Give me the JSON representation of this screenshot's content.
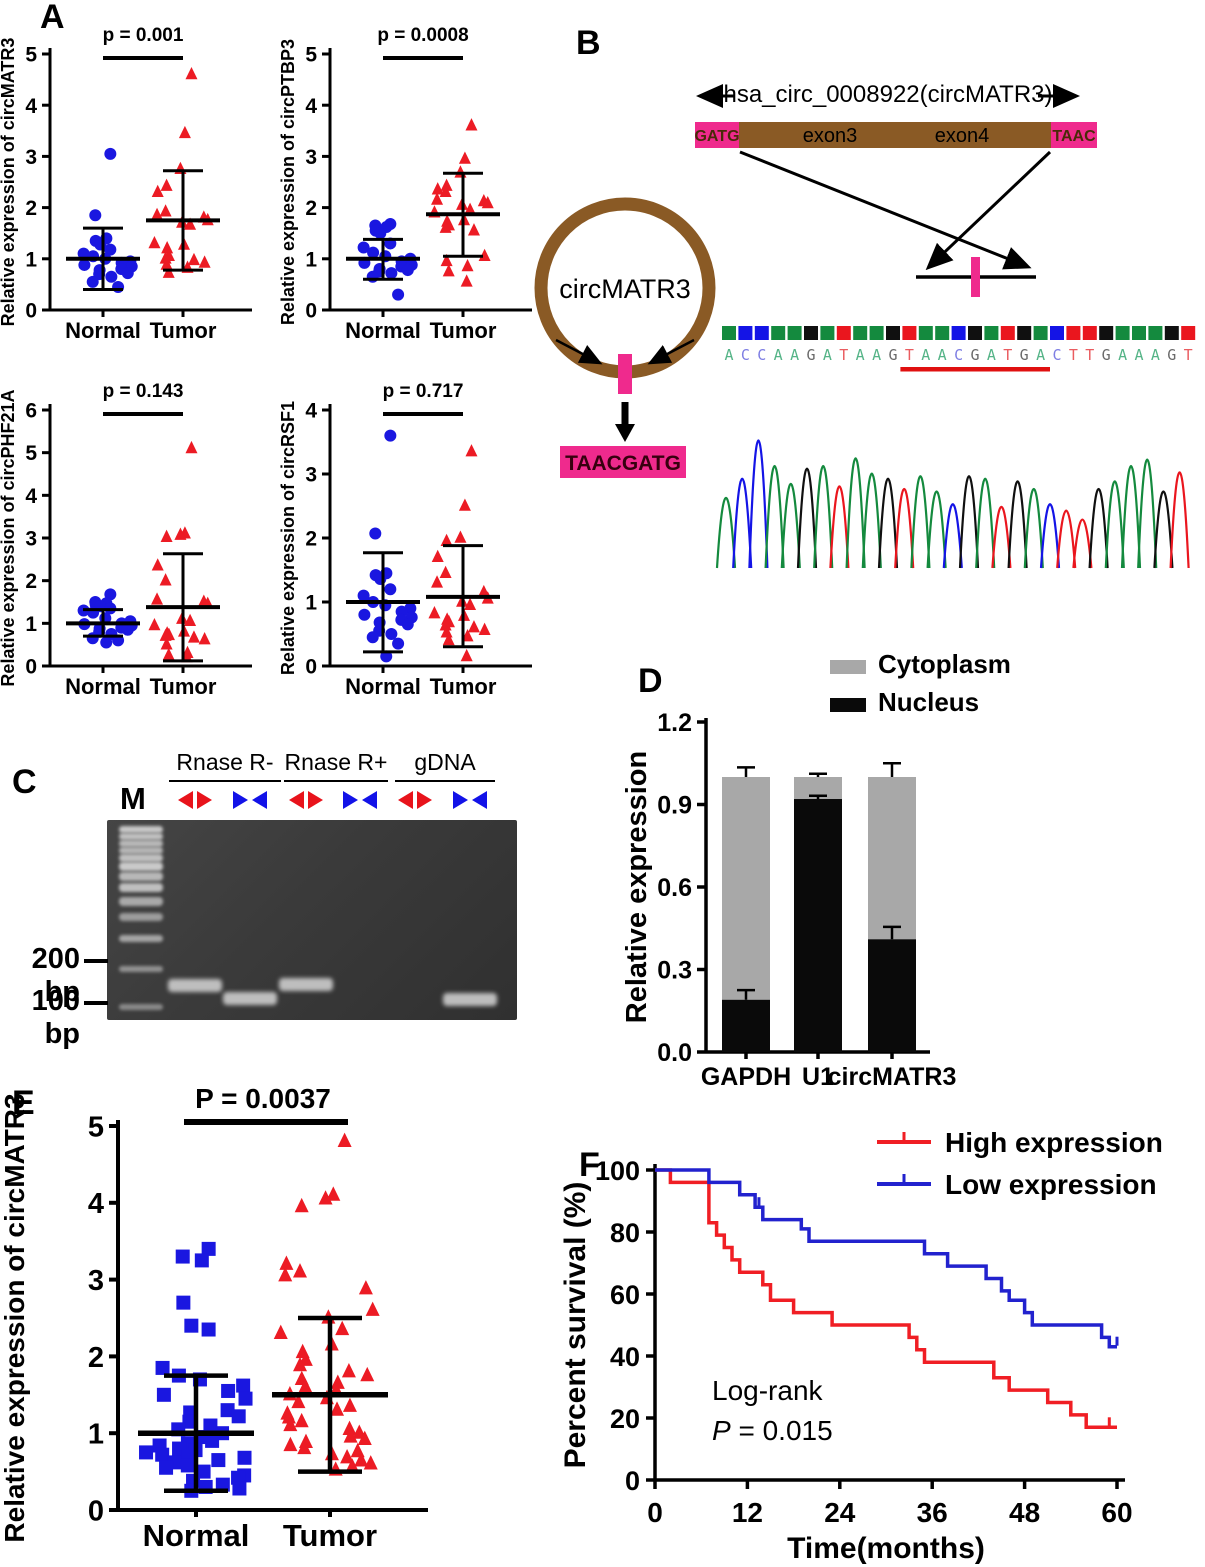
{
  "panel_labels": {
    "A": "A",
    "B": "B",
    "C": "C",
    "D": "D",
    "E": "E",
    "F": "F"
  },
  "colors": {
    "marker_blue": "#1A17E0",
    "marker_red": "#EC1B24",
    "km_red": "#F01E24",
    "km_blue": "#2222CE",
    "magenta": "#EF2A8D",
    "brown": "#8A5A25",
    "gray": "#A8A8A8",
    "black": "#0A0A0A",
    "underline_red": "#E01010",
    "arrow_red": "#E8131B",
    "arrow_blue": "#1212E8"
  },
  "panelB": {
    "title": "hsa_circ_0008922(circMATR3)",
    "gatg": "GATG",
    "taac": "TAAC",
    "exon3": "exon3",
    "exon4": "exon4",
    "circle_label": "circMATR3",
    "junction_seq": "TAACGATG",
    "sequence": "ACCAAGATAAGTAACGATGACTTGAAAGT",
    "underline": {
      "start": 11,
      "length": 9
    },
    "base_colors": {
      "A": "#148A3E",
      "C": "#1414E6",
      "G": "#101010",
      "T": "#EA161E"
    },
    "letter_colors": {
      "A": "#55B487",
      "C": "#7E7EE3",
      "G": "#6A6A6A",
      "T": "#EA5C60"
    },
    "chromatogram_heights": [
      0.55,
      0.7,
      1.0,
      0.8,
      0.66,
      0.78,
      0.8,
      0.64,
      0.86,
      0.74,
      0.7,
      0.62,
      0.72,
      0.6,
      0.5,
      0.72,
      0.7,
      0.48,
      0.68,
      0.62,
      0.5,
      0.45,
      0.38,
      0.62,
      0.68,
      0.8,
      0.85,
      0.6,
      0.75
    ]
  },
  "panelC": {
    "marker_lane_label": "M",
    "group_labels": [
      "Rnase R-",
      "Rnase R+",
      "gDNA"
    ],
    "size_labels": [
      "200 bp",
      "100 bp"
    ],
    "lanes": [
      {
        "group": "Rnase R-",
        "primers": "divergent",
        "color": "red",
        "band_bp": 150
      },
      {
        "group": "Rnase R-",
        "primers": "convergent",
        "color": "blue",
        "band_bp": 115
      },
      {
        "group": "Rnase R+",
        "primers": "divergent",
        "color": "red",
        "band_bp": 152
      },
      {
        "group": "Rnase R+",
        "primers": "convergent",
        "color": "blue",
        "band_bp": null
      },
      {
        "group": "gDNA",
        "primers": "divergent",
        "color": "red",
        "band_bp": null
      },
      {
        "group": "gDNA",
        "primers": "convergent",
        "color": "blue",
        "band_bp": 112
      }
    ]
  },
  "chart_data": [
    {
      "id": "A1",
      "type": "scatter",
      "ylabel": "Relative expression of circMATR3",
      "p_label": "p = 0.001",
      "ylim": [
        0,
        5
      ],
      "yticks": [
        0,
        1,
        2,
        3,
        4,
        5
      ],
      "categories": [
        "Normal",
        "Tumor"
      ],
      "series": [
        {
          "name": "Normal",
          "marker": "circle",
          "color": "#1A17E0",
          "mean": 1.0,
          "sd_range": [
            0.4,
            1.6
          ],
          "values": [
            3.05,
            1.85,
            1.4,
            1.35,
            1.28,
            1.18,
            1.1,
            1.05,
            1.0,
            0.95,
            0.92,
            0.88,
            0.85,
            0.8,
            0.78,
            0.72,
            0.7,
            0.65,
            0.55,
            0.45
          ]
        },
        {
          "name": "Tumor",
          "marker": "triangle",
          "color": "#EC1B24",
          "mean": 1.75,
          "sd_range": [
            0.78,
            2.72
          ],
          "values": [
            4.6,
            3.45,
            2.75,
            2.42,
            2.3,
            1.92,
            1.85,
            1.8,
            1.75,
            1.7,
            1.66,
            1.3,
            1.27,
            1.2,
            1.05,
            1.0,
            0.97,
            0.92,
            0.88,
            0.82,
            0.72
          ]
        }
      ]
    },
    {
      "id": "A2",
      "type": "scatter",
      "ylabel": "Relative expression of circPTBP3",
      "p_label": "p = 0.0008",
      "ylim": [
        0,
        5
      ],
      "yticks": [
        0,
        1,
        2,
        3,
        4,
        5
      ],
      "categories": [
        "Normal",
        "Tumor"
      ],
      "series": [
        {
          "name": "Normal",
          "marker": "circle",
          "color": "#1A17E0",
          "mean": 1.0,
          "sd_range": [
            0.6,
            1.38
          ],
          "values": [
            1.68,
            1.65,
            1.62,
            1.55,
            1.5,
            1.3,
            1.22,
            1.12,
            1.05,
            1.0,
            0.95,
            0.92,
            0.88,
            0.85,
            0.8,
            0.78,
            0.75,
            0.72,
            0.65,
            0.3
          ]
        },
        {
          "name": "Tumor",
          "marker": "triangle",
          "color": "#EC1B24",
          "mean": 1.87,
          "sd_range": [
            1.05,
            2.67
          ],
          "values": [
            3.6,
            2.95,
            2.68,
            2.42,
            2.35,
            2.3,
            2.15,
            2.12,
            2.08,
            2.05,
            1.95,
            1.9,
            1.75,
            1.72,
            1.65,
            1.6,
            1.55,
            1.05,
            0.95,
            0.85,
            0.75,
            0.55
          ]
        }
      ]
    },
    {
      "id": "A3",
      "type": "scatter",
      "ylabel": "Relative expression of circPHF21A",
      "p_label": "p = 0.143",
      "ylim": [
        0,
        6
      ],
      "yticks": [
        0,
        1,
        2,
        3,
        4,
        5,
        6
      ],
      "categories": [
        "Normal",
        "Tumor"
      ],
      "series": [
        {
          "name": "Normal",
          "marker": "circle",
          "color": "#1A17E0",
          "mean": 1.0,
          "sd_range": [
            0.7,
            1.32
          ],
          "values": [
            1.68,
            1.5,
            1.47,
            1.44,
            1.4,
            1.35,
            1.3,
            1.25,
            1.12,
            1.05,
            1.0,
            0.98,
            0.95,
            0.9,
            0.88,
            0.85,
            0.8,
            0.75,
            0.65,
            0.6,
            0.55
          ]
        },
        {
          "name": "Tumor",
          "marker": "triangle",
          "color": "#EC1B24",
          "mean": 1.38,
          "sd_range": [
            0.12,
            2.63
          ],
          "values": [
            5.1,
            3.1,
            3.07,
            3.02,
            2.35,
            2.0,
            1.55,
            1.5,
            1.45,
            1.1,
            1.05,
            0.95,
            0.8,
            0.76,
            0.72,
            0.7,
            0.66,
            0.62,
            0.5,
            0.3,
            0.25,
            0.2
          ]
        }
      ]
    },
    {
      "id": "A4",
      "type": "scatter",
      "ylabel": "Relative expression of circRSF1",
      "p_label": "p = 0.717",
      "ylim": [
        0,
        4
      ],
      "yticks": [
        0,
        1,
        2,
        3,
        4
      ],
      "categories": [
        "Normal",
        "Tumor"
      ],
      "series": [
        {
          "name": "Normal",
          "marker": "circle",
          "color": "#1A17E0",
          "mean": 1.0,
          "sd_range": [
            0.22,
            1.77
          ],
          "values": [
            3.6,
            2.07,
            1.45,
            1.42,
            1.36,
            1.2,
            1.1,
            1.0,
            0.95,
            0.9,
            0.85,
            0.8,
            0.76,
            0.72,
            0.68,
            0.65,
            0.55,
            0.5,
            0.45,
            0.35,
            0.15
          ]
        },
        {
          "name": "Tumor",
          "marker": "triangle",
          "color": "#EC1B24",
          "mean": 1.08,
          "sd_range": [
            0.3,
            1.88
          ],
          "values": [
            3.35,
            2.5,
            2.0,
            1.95,
            1.7,
            1.45,
            1.3,
            1.15,
            1.05,
            1.0,
            0.95,
            0.82,
            0.78,
            0.72,
            0.68,
            0.63,
            0.6,
            0.56,
            0.52,
            0.46,
            0.4,
            0.15
          ]
        }
      ]
    },
    {
      "id": "D",
      "type": "stacked-bar",
      "ylabel": "Relative expression",
      "ylim": [
        0,
        1.2
      ],
      "yticks": [
        "0.0",
        "0.3",
        "0.6",
        "0.9",
        "1.2"
      ],
      "categories": [
        "GAPDH",
        "U1",
        "circMATR3"
      ],
      "legend": [
        {
          "label": "Cytoplasm",
          "color": "#A8A8A8"
        },
        {
          "label": "Nucleus",
          "color": "#0A0A0A"
        }
      ],
      "series": [
        {
          "name": "Nucleus",
          "color": "#0A0A0A",
          "values": [
            0.19,
            0.92,
            0.41
          ],
          "errors": [
            0.035,
            0.012,
            0.045
          ]
        },
        {
          "name": "Cytoplasm",
          "color": "#A8A8A8",
          "values": [
            0.81,
            0.08,
            0.59
          ],
          "errors": [
            0.035,
            0.012,
            0.05
          ]
        }
      ]
    },
    {
      "id": "E",
      "type": "scatter",
      "ylabel": "Relative expression of circMATR3",
      "p_label": "P = 0.0037",
      "ylim": [
        0,
        5
      ],
      "yticks": [
        0,
        1,
        2,
        3,
        4,
        5
      ],
      "categories": [
        "Normal",
        "Tumor"
      ],
      "series": [
        {
          "name": "Normal",
          "marker": "square",
          "color": "#1A17E0",
          "mean": 1.0,
          "sd_range": [
            0.25,
            1.75
          ],
          "values": [
            3.4,
            3.3,
            3.25,
            2.7,
            2.4,
            2.35,
            1.85,
            1.75,
            1.7,
            1.62,
            1.55,
            1.5,
            1.45,
            1.3,
            1.27,
            1.22,
            1.15,
            1.1,
            1.05,
            1.0,
            0.95,
            0.9,
            0.87,
            0.84,
            0.8,
            0.78,
            0.75,
            0.72,
            0.7,
            0.68,
            0.65,
            0.62,
            0.58,
            0.55,
            0.5,
            0.45,
            0.42,
            0.38,
            0.33,
            0.3,
            0.28,
            0.25
          ]
        },
        {
          "name": "Tumor",
          "marker": "triangle",
          "color": "#EC1B24",
          "mean": 1.5,
          "sd_range": [
            0.5,
            2.5
          ],
          "values": [
            4.8,
            4.1,
            4.05,
            3.95,
            3.2,
            3.1,
            3.05,
            2.88,
            2.6,
            2.5,
            2.35,
            2.3,
            2.15,
            2.05,
            1.95,
            1.88,
            1.8,
            1.75,
            1.7,
            1.65,
            1.6,
            1.55,
            1.5,
            1.45,
            1.4,
            1.35,
            1.3,
            1.25,
            1.2,
            1.15,
            1.1,
            1.05,
            1.0,
            0.95,
            0.92,
            0.88,
            0.84,
            0.8,
            0.76,
            0.72,
            0.68,
            0.64,
            0.6,
            0.56,
            0.52
          ]
        }
      ]
    },
    {
      "id": "F",
      "type": "km",
      "xlabel": "Time(months)",
      "ylabel": "Percent survival (%)",
      "xlim": [
        0,
        60
      ],
      "ylim": [
        0,
        100
      ],
      "xticks": [
        0,
        12,
        24,
        36,
        48,
        60
      ],
      "yticks": [
        0,
        20,
        40,
        60,
        80,
        100
      ],
      "annotation_line1": "Log-rank",
      "annotation_p_symbol": "P",
      "annotation_p_value": " = 0.015",
      "series": [
        {
          "name": "High expression",
          "color": "#F01E24",
          "points": [
            [
              0,
              100
            ],
            [
              2,
              96
            ],
            [
              7,
              83
            ],
            [
              8,
              79
            ],
            [
              9,
              75
            ],
            [
              10,
              71
            ],
            [
              11,
              67
            ],
            [
              14,
              63
            ],
            [
              15,
              58
            ],
            [
              18,
              54
            ],
            [
              23,
              50
            ],
            [
              33,
              46
            ],
            [
              34,
              42
            ],
            [
              35,
              38
            ],
            [
              44,
              33
            ],
            [
              46,
              29
            ],
            [
              51,
              25
            ],
            [
              54,
              21
            ],
            [
              56,
              17
            ],
            [
              60,
              17
            ]
          ],
          "censors": [
            [
              59,
              17
            ]
          ]
        },
        {
          "name": "Low expression",
          "color": "#2222CE",
          "points": [
            [
              0,
              100
            ],
            [
              7,
              96
            ],
            [
              11,
              92
            ],
            [
              13,
              88
            ],
            [
              14,
              84
            ],
            [
              19,
              81
            ],
            [
              20,
              77
            ],
            [
              35,
              73
            ],
            [
              38,
              69
            ],
            [
              43,
              65
            ],
            [
              45,
              61
            ],
            [
              46,
              58
            ],
            [
              48,
              54
            ],
            [
              49,
              50
            ],
            [
              58,
              46
            ],
            [
              59,
              43
            ],
            [
              60,
              43
            ]
          ],
          "censors": [
            [
              13.5,
              88
            ],
            [
              60,
              43
            ]
          ]
        }
      ]
    }
  ]
}
